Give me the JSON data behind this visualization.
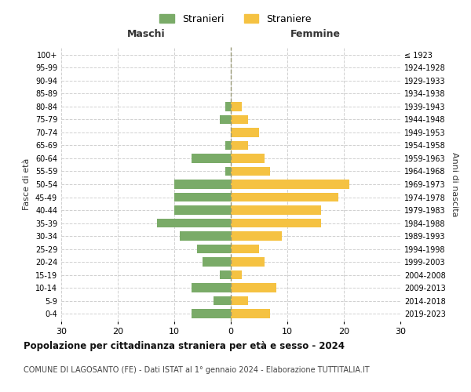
{
  "age_groups": [
    "0-4",
    "5-9",
    "10-14",
    "15-19",
    "20-24",
    "25-29",
    "30-34",
    "35-39",
    "40-44",
    "45-49",
    "50-54",
    "55-59",
    "60-64",
    "65-69",
    "70-74",
    "75-79",
    "80-84",
    "85-89",
    "90-94",
    "95-99",
    "100+"
  ],
  "birth_years": [
    "2019-2023",
    "2014-2018",
    "2009-2013",
    "2004-2008",
    "1999-2003",
    "1994-1998",
    "1989-1993",
    "1984-1988",
    "1979-1983",
    "1974-1978",
    "1969-1973",
    "1964-1968",
    "1959-1963",
    "1954-1958",
    "1949-1953",
    "1944-1948",
    "1939-1943",
    "1934-1938",
    "1929-1933",
    "1924-1928",
    "≤ 1923"
  ],
  "maschi": [
    7,
    3,
    7,
    2,
    5,
    6,
    9,
    13,
    10,
    10,
    10,
    1,
    7,
    1,
    0,
    2,
    1,
    0,
    0,
    0,
    0
  ],
  "femmine": [
    7,
    3,
    8,
    2,
    6,
    5,
    9,
    16,
    16,
    19,
    21,
    7,
    6,
    3,
    5,
    3,
    2,
    0,
    0,
    0,
    0
  ],
  "color_maschi": "#7aab68",
  "color_femmine": "#f5c242",
  "title": "Popolazione per cittadinanza straniera per età e sesso - 2024",
  "subtitle": "COMUNE DI LAGOSANTO (FE) - Dati ISTAT al 1° gennaio 2024 - Elaborazione TUTTITALIA.IT",
  "xlabel_left": "Maschi",
  "xlabel_right": "Femmine",
  "ylabel_left": "Fasce di età",
  "ylabel_right": "Anni di nascita",
  "xlim": 30,
  "legend_stranieri": "Stranieri",
  "legend_straniere": "Straniere",
  "background_color": "#ffffff",
  "grid_color": "#d0d0d0"
}
